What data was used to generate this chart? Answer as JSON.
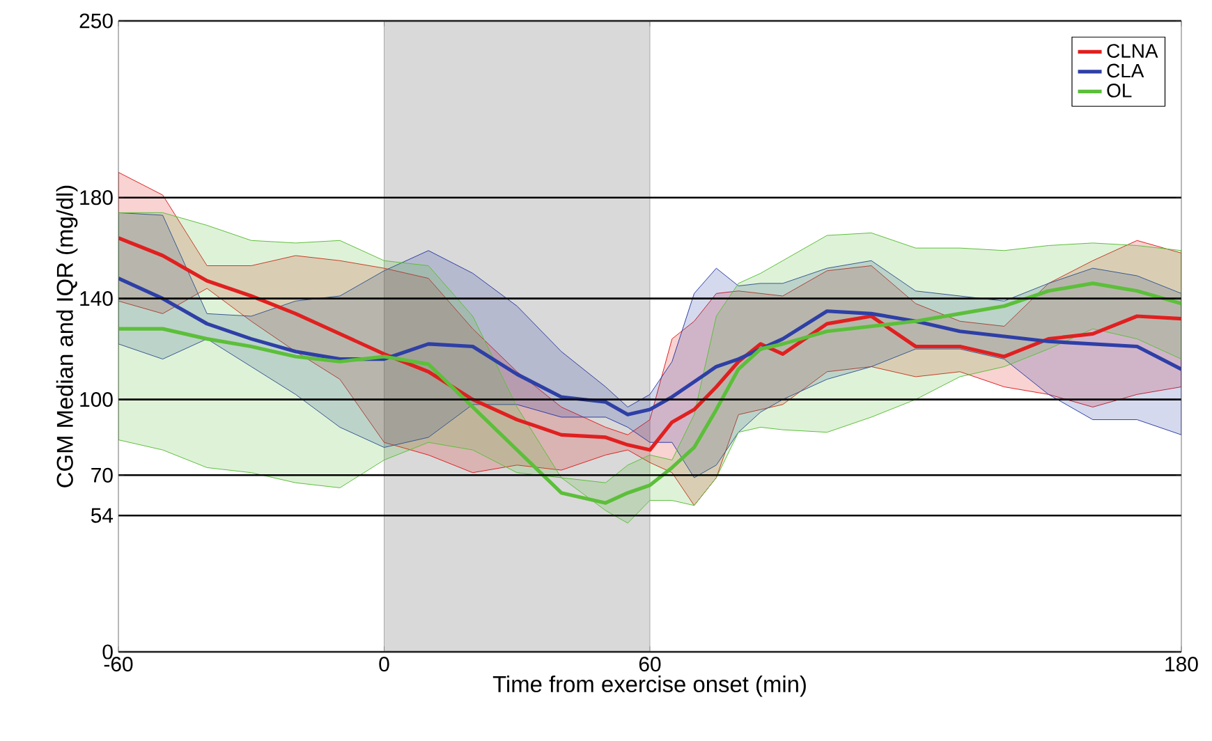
{
  "chart_data": {
    "type": "line",
    "xlabel": "Time from exercise onset (min)",
    "ylabel": "CGM Median and IQR (mg/dl)",
    "x": [
      -60,
      -50,
      -40,
      -30,
      -20,
      -10,
      0,
      10,
      20,
      30,
      40,
      50,
      55,
      60,
      65,
      70,
      75,
      80,
      85,
      90,
      100,
      110,
      120,
      130,
      140,
      150,
      160,
      170,
      180
    ],
    "series": [
      {
        "name": "CLNA",
        "color": "#e02020",
        "values": [
          164,
          157,
          147,
          141,
          134,
          126,
          118,
          111,
          100,
          92,
          86,
          85,
          82,
          80,
          91,
          96,
          105,
          115,
          122,
          118,
          130,
          133,
          121,
          121,
          117,
          124,
          126,
          133,
          132
        ],
        "lower": [
          139,
          134,
          144,
          131,
          119,
          108,
          83,
          78,
          71,
          74,
          72,
          78,
          80,
          75,
          71,
          58,
          69,
          94,
          96,
          98,
          111,
          113,
          109,
          111,
          105,
          102,
          97,
          102,
          105
        ],
        "upper": [
          190,
          181,
          153,
          153,
          157,
          155,
          152,
          148,
          128,
          111,
          97,
          89,
          86,
          92,
          124,
          131,
          142,
          143,
          142,
          141,
          151,
          153,
          138,
          131,
          129,
          146,
          155,
          163,
          158
        ]
      },
      {
        "name": "CLA",
        "color": "#2e3fa6",
        "values": [
          148,
          140,
          130,
          124,
          119,
          116,
          116,
          122,
          121,
          110,
          101,
          99,
          94,
          96,
          101,
          107,
          113,
          116,
          120,
          124,
          135,
          134,
          131,
          127,
          125,
          123,
          122,
          121,
          112
        ],
        "lower": [
          122,
          116,
          124,
          113,
          102,
          89,
          81,
          85,
          98,
          98,
          93,
          93,
          89,
          83,
          83,
          69,
          74,
          87,
          95,
          100,
          108,
          113,
          120,
          120,
          116,
          102,
          92,
          92,
          86
        ],
        "upper": [
          174,
          173,
          134,
          133,
          139,
          141,
          151,
          159,
          150,
          137,
          119,
          105,
          97,
          102,
          115,
          142,
          152,
          145,
          146,
          146,
          152,
          155,
          143,
          141,
          139,
          146,
          152,
          149,
          142
        ]
      },
      {
        "name": "OL",
        "color": "#5cbf3a",
        "values": [
          128,
          128,
          124,
          121,
          117,
          115,
          117,
          114,
          97,
          80,
          63,
          59,
          63,
          66,
          73,
          81,
          96,
          112,
          120,
          122,
          127,
          129,
          131,
          134,
          137,
          143,
          146,
          143,
          138
        ],
        "lower": [
          84,
          80,
          73,
          71,
          67,
          65,
          76,
          83,
          80,
          71,
          69,
          56,
          51,
          60,
          60,
          58,
          69,
          87,
          89,
          88,
          87,
          93,
          100,
          109,
          113,
          120,
          128,
          124,
          116
        ],
        "upper": [
          174,
          174,
          169,
          163,
          162,
          163,
          155,
          153,
          133,
          97,
          69,
          67,
          74,
          78,
          76,
          94,
          133,
          146,
          150,
          155,
          165,
          166,
          160,
          160,
          159,
          161,
          162,
          161,
          159
        ]
      }
    ],
    "xlim": [
      -60,
      180
    ],
    "xticks": [
      -60,
      0,
      60,
      180
    ],
    "ylim": [
      0,
      250
    ],
    "yticks": [
      0,
      54,
      70,
      100,
      140,
      180,
      250
    ],
    "grid": "y",
    "legend": "top right",
    "marker": "none",
    "line_style": "solid",
    "bands": [
      {
        "axis": "x",
        "from": 0,
        "to": 60,
        "color": "#d9d9d9"
      }
    ]
  }
}
